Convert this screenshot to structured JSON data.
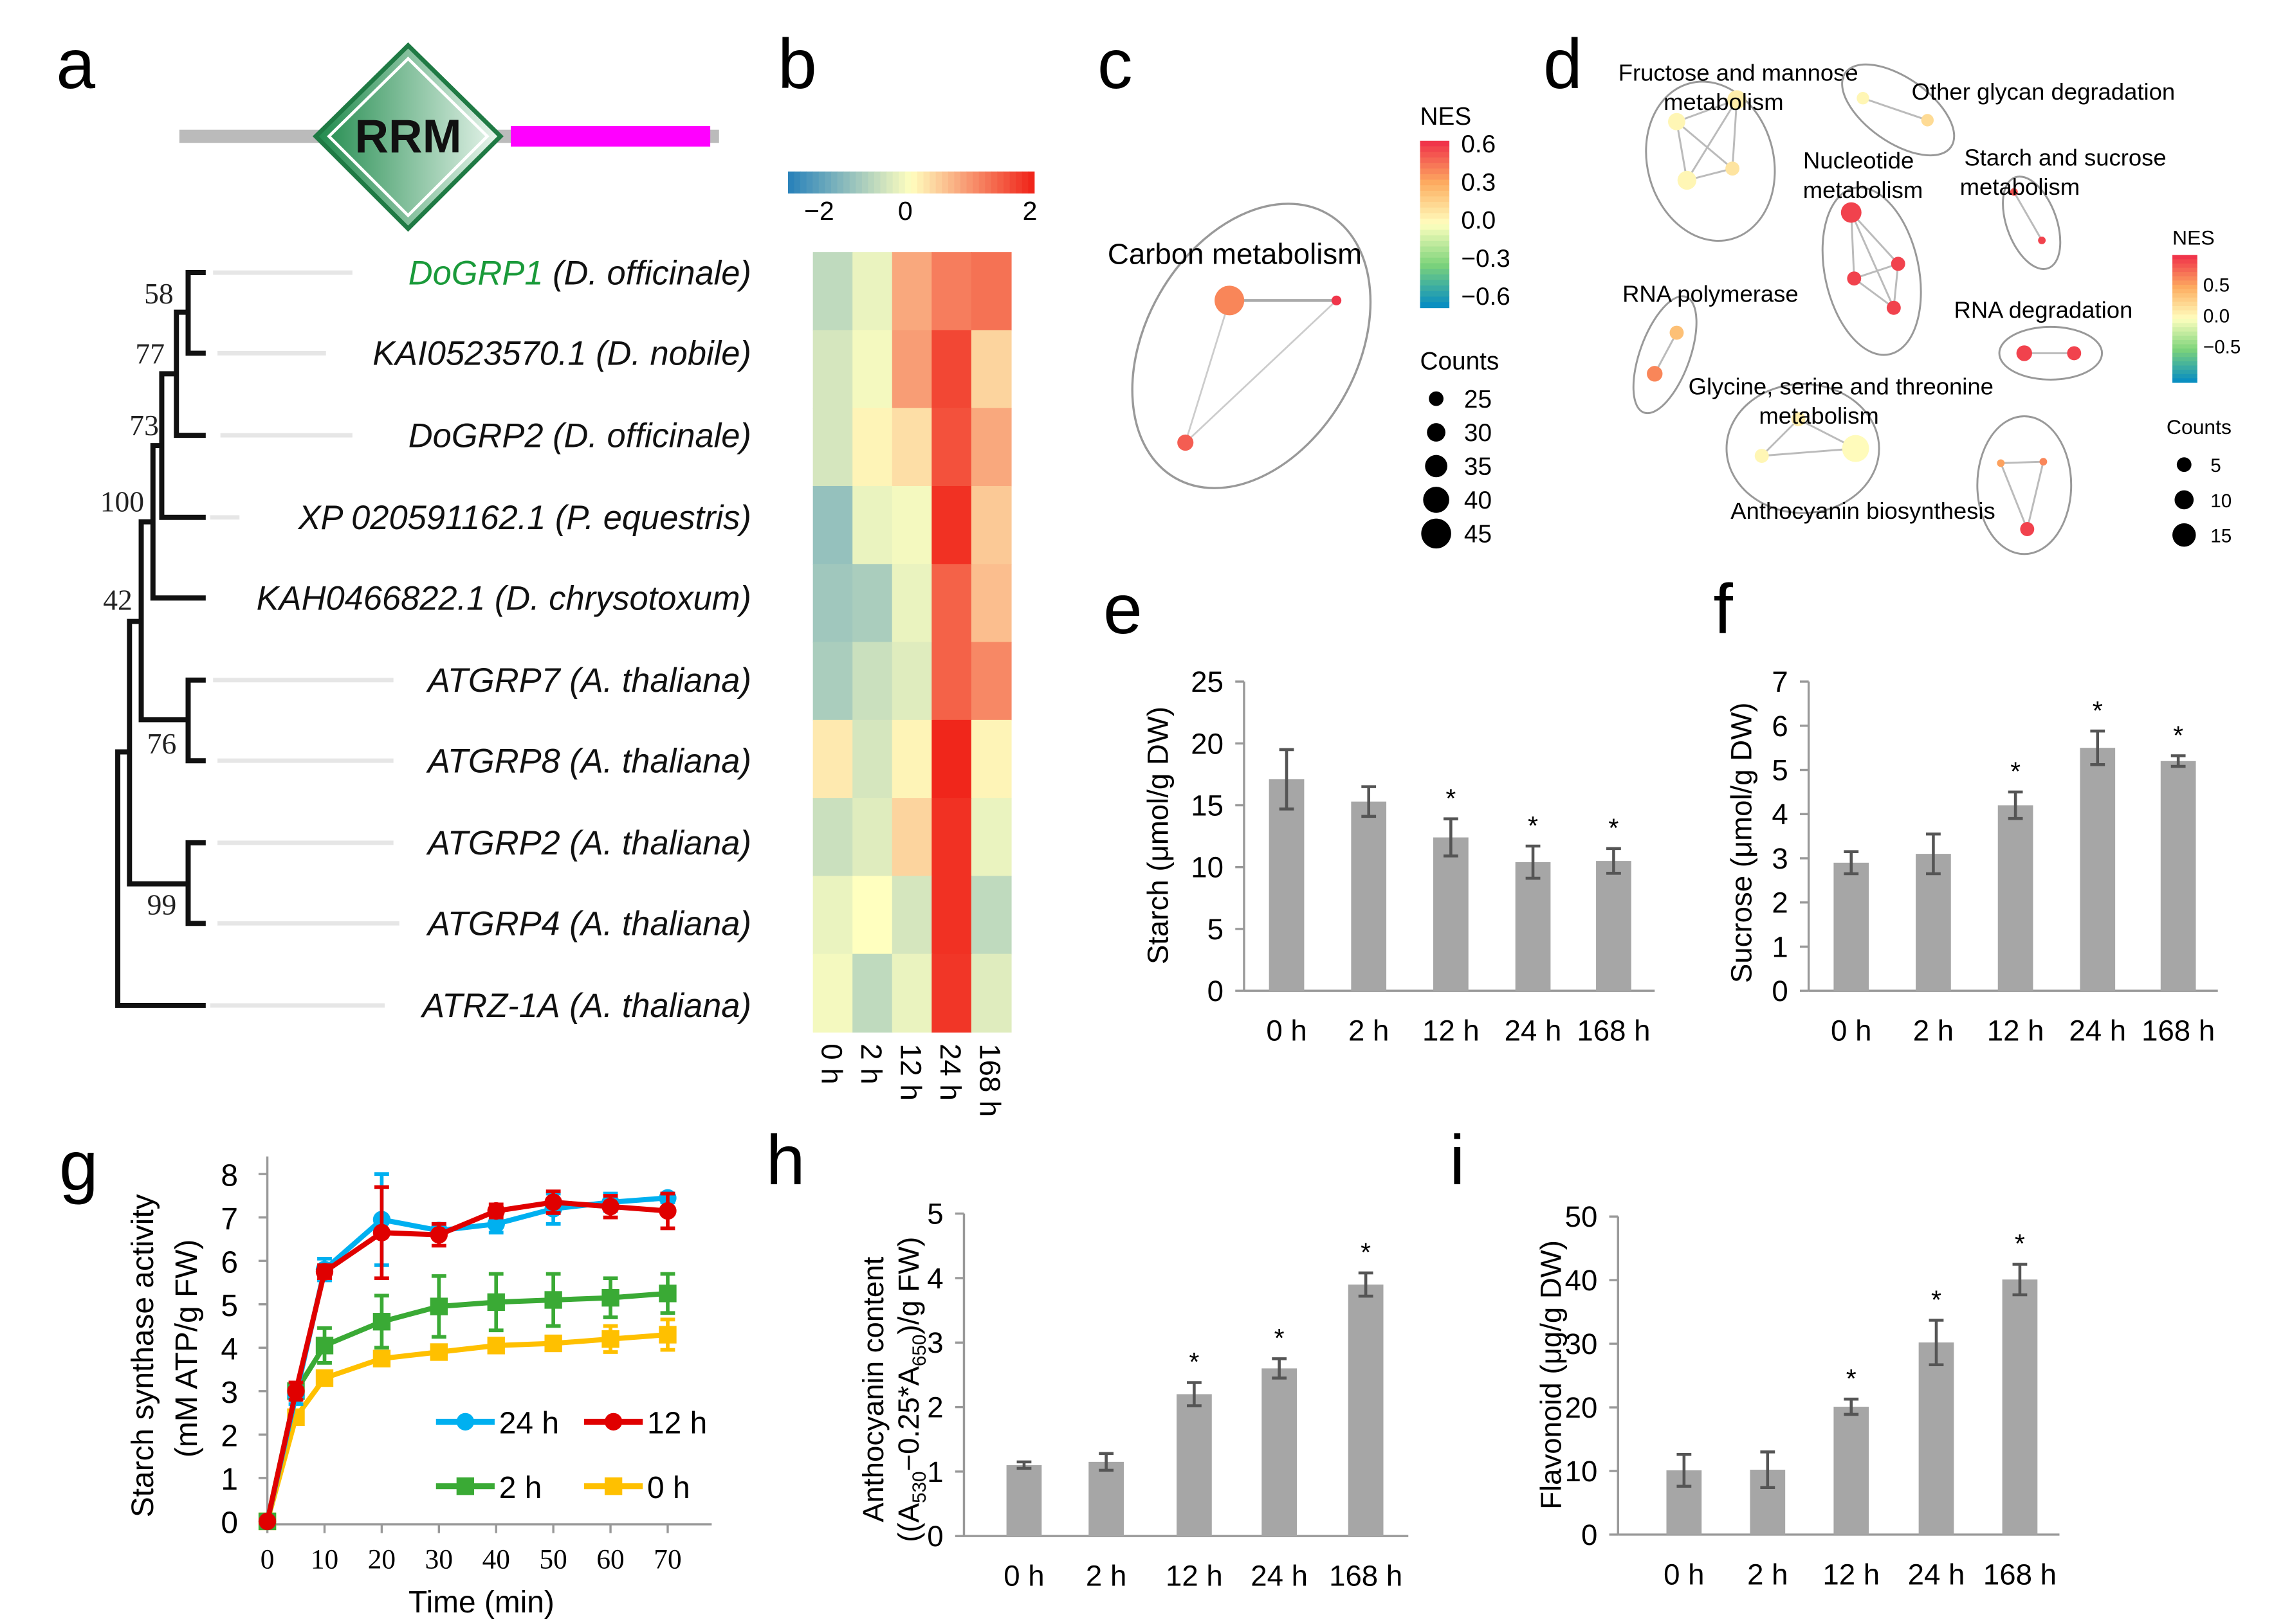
{
  "panel_labels": [
    "a",
    "b",
    "c",
    "d",
    "e",
    "f",
    "g",
    "h",
    "i"
  ],
  "domain_diagram": {
    "domain_label": "RRM",
    "colors": {
      "domain": "#2e9e5e",
      "tail": "#ff00ff",
      "line": "#bbbbbb"
    }
  },
  "tree": {
    "leaves": [
      {
        "gene": "DoGRP1",
        "species": " (D. officinale)",
        "color": "#1a9a3a"
      },
      {
        "gene": "KAI0523570.1",
        "species": " (D. nobile)",
        "color": "#111111"
      },
      {
        "gene": "DoGRP2",
        "species": " (D. officinale)",
        "color": "#111111"
      },
      {
        "gene": "XP 020591162.1",
        "species": " (P. equestris)",
        "color": "#111111"
      },
      {
        "gene": "KAH0466822.1",
        "species": " (D. chrysotoxum)",
        "color": "#111111"
      },
      {
        "gene": "ATGRP7",
        "species": " (A. thaliana)",
        "color": "#111111"
      },
      {
        "gene": "ATGRP8",
        "species": " (A. thaliana)",
        "color": "#111111"
      },
      {
        "gene": "ATGRP2",
        "species": " (A. thaliana)",
        "color": "#111111"
      },
      {
        "gene": "ATGRP4",
        "species": " (A. thaliana)",
        "color": "#111111"
      },
      {
        "gene": "ATRZ-1A",
        "species": " (A. thaliana)",
        "color": "#111111"
      }
    ],
    "bootstrap": [
      "58",
      "77",
      "73",
      "100",
      "42",
      "76",
      "99"
    ]
  },
  "chart_data": [
    {
      "id": "b",
      "type": "heatmap",
      "columns": [
        "0 h",
        "2 h",
        "12 h",
        "24 h",
        "168 h"
      ],
      "rows": [
        "DoGRP1",
        "KAI0523570.1",
        "DoGRP2",
        "XP 020591162.1",
        "KAH0466822.1",
        "ATGRP7",
        "ATGRP8",
        "ATGRP2",
        "ATGRP4",
        "ATRZ-1A"
      ],
      "values": [
        [
          -0.6,
          -0.2,
          0.8,
          1.2,
          1.3
        ],
        [
          -0.4,
          -0.1,
          0.9,
          1.7,
          0.4
        ],
        [
          -0.4,
          0.1,
          0.3,
          1.6,
          0.8
        ],
        [
          -1.0,
          -0.2,
          -0.1,
          1.9,
          0.5
        ],
        [
          -0.9,
          -0.8,
          -0.2,
          1.45,
          0.6
        ],
        [
          -0.8,
          -0.5,
          -0.3,
          1.45,
          1.1
        ],
        [
          0.2,
          -0.4,
          0.1,
          2.0,
          0.1
        ],
        [
          -0.5,
          -0.3,
          0.4,
          1.9,
          -0.2
        ],
        [
          -0.2,
          0.0,
          -0.4,
          1.9,
          -0.6
        ],
        [
          -0.1,
          -0.6,
          -0.2,
          1.85,
          -0.3
        ]
      ],
      "scale": {
        "min": -2,
        "max": 2,
        "ticks": [
          "−2",
          "0",
          "2"
        ],
        "colors": [
          "#2b83ba",
          "#ffffbf",
          "#f0261b"
        ]
      }
    },
    {
      "id": "c",
      "type": "network",
      "title": "Carbon metabolism",
      "nes_legend": {
        "title": "NES",
        "ticks": [
          "0.6",
          "0.3",
          "0.0",
          "−0.3",
          "−0.6"
        ],
        "min": -0.6,
        "max": 0.6
      },
      "counts_legend": {
        "title": "Counts",
        "values": [
          25,
          30,
          35,
          40,
          45
        ]
      },
      "groups": [
        {
          "label": "Carbon metabolism",
          "nodes": [
            {
              "nes": 0.4,
              "count": 45
            },
            {
              "nes": 0.6,
              "count": 20
            },
            {
              "nes": 0.5,
              "count": 28
            }
          ],
          "edges": [
            [
              0,
              1
            ],
            [
              0,
              2
            ],
            [
              1,
              2
            ]
          ]
        }
      ]
    },
    {
      "id": "d",
      "type": "network",
      "nes_legend": {
        "title": "NES",
        "ticks": [
          "0.5",
          "0.0",
          "−0.5"
        ],
        "min": -0.9,
        "max": 0.9
      },
      "counts_legend": {
        "title": "Counts",
        "values": [
          5,
          10,
          15
        ]
      },
      "groups": [
        {
          "label": "Fructose and mannose metabolism",
          "nodes": [
            {
              "nes": 0.05,
              "count": 8
            },
            {
              "nes": 0.1,
              "count": 9
            },
            {
              "nes": 0.15,
              "count": 6
            },
            {
              "nes": 0.05,
              "count": 9
            }
          ],
          "edges": [
            [
              0,
              1
            ],
            [
              0,
              2
            ],
            [
              0,
              3
            ],
            [
              1,
              2
            ],
            [
              1,
              3
            ],
            [
              2,
              3
            ]
          ]
        },
        {
          "label": "Other glycan degradation",
          "nodes": [
            {
              "nes": 0.05,
              "count": 5
            },
            {
              "nes": 0.2,
              "count": 5
            }
          ],
          "edges": [
            [
              0,
              1
            ]
          ]
        },
        {
          "label": "Nucleotide metabolism",
          "nodes": [
            {
              "nes": 0.85,
              "count": 10
            },
            {
              "nes": 0.85,
              "count": 6
            },
            {
              "nes": 0.85,
              "count": 6
            },
            {
              "nes": 0.85,
              "count": 6
            }
          ],
          "edges": [
            [
              0,
              1
            ],
            [
              0,
              2
            ],
            [
              0,
              3
            ],
            [
              1,
              2
            ],
            [
              1,
              3
            ],
            [
              2,
              3
            ]
          ]
        },
        {
          "label": "Starch and sucrose metabolism",
          "nodes": [
            {
              "nes": 0.8,
              "count": 2
            },
            {
              "nes": 0.85,
              "count": 2
            }
          ],
          "edges": [
            [
              0,
              1
            ]
          ]
        },
        {
          "label": "RNA polymerase",
          "nodes": [
            {
              "nes": 0.35,
              "count": 6
            },
            {
              "nes": 0.6,
              "count": 7
            }
          ],
          "edges": [
            [
              0,
              1
            ]
          ]
        },
        {
          "label": "RNA degradation",
          "nodes": [
            {
              "nes": 0.85,
              "count": 7
            },
            {
              "nes": 0.85,
              "count": 6
            }
          ],
          "edges": [
            [
              0,
              1
            ]
          ]
        },
        {
          "label": "Glycine, serine and threonine metabolism",
          "nodes": [
            {
              "nes": 0.1,
              "count": 6
            },
            {
              "nes": 0.05,
              "count": 6
            },
            {
              "nes": 0.02,
              "count": 14
            }
          ],
          "edges": [
            [
              0,
              1
            ],
            [
              0,
              2
            ],
            [
              1,
              2
            ]
          ]
        },
        {
          "label": "Anthocyanin biosynthesis",
          "nodes": [
            {
              "nes": 0.5,
              "count": 2
            },
            {
              "nes": 0.6,
              "count": 2
            },
            {
              "nes": 0.85,
              "count": 6
            }
          ],
          "edges": [
            [
              0,
              1
            ],
            [
              0,
              2
            ],
            [
              1,
              2
            ]
          ]
        }
      ]
    },
    {
      "id": "e",
      "type": "bar",
      "ylabel": "Starch (μmol/g DW)",
      "ylim": [
        0,
        25
      ],
      "yticks": [
        0,
        5,
        10,
        15,
        20,
        25
      ],
      "categories": [
        "0 h",
        "2 h",
        "12 h",
        "24 h",
        "168 h"
      ],
      "values": [
        17.1,
        15.3,
        12.4,
        10.4,
        10.5
      ],
      "errors": [
        2.4,
        1.2,
        1.5,
        1.3,
        1.0
      ],
      "significant": [
        false,
        false,
        true,
        true,
        true
      ],
      "sig_mark": "*"
    },
    {
      "id": "f",
      "type": "bar",
      "ylabel": "Sucrose (μmol/g DW)",
      "ylim": [
        0,
        7
      ],
      "yticks": [
        0,
        1,
        2,
        3,
        4,
        5,
        6,
        7
      ],
      "categories": [
        "0 h",
        "2 h",
        "12 h",
        "24 h",
        "168 h"
      ],
      "values": [
        2.9,
        3.1,
        4.2,
        5.5,
        5.2
      ],
      "errors": [
        0.25,
        0.45,
        0.3,
        0.38,
        0.12
      ],
      "significant": [
        false,
        false,
        true,
        true,
        true
      ],
      "sig_mark": "*"
    },
    {
      "id": "g",
      "type": "line",
      "xlabel": "Time (min)",
      "ylabel": "Starch  synthase activity",
      "ylabel2": "(mM ATP/g FW)",
      "xlim": [
        0,
        70
      ],
      "ylim": [
        0,
        8
      ],
      "xticks": [
        0,
        10,
        20,
        30,
        40,
        50,
        60,
        70
      ],
      "yticks": [
        0,
        1,
        2,
        3,
        4,
        5,
        6,
        7,
        8
      ],
      "x": [
        0,
        5,
        10,
        20,
        30,
        40,
        50,
        60,
        70
      ],
      "series": [
        {
          "name": "24 h",
          "color": "#00b0f0",
          "marker": "circle",
          "values": [
            0,
            2.9,
            5.8,
            6.95,
            6.7,
            6.85,
            7.2,
            7.35,
            7.45
          ],
          "errors": [
            0,
            0.2,
            0.25,
            1.05,
            0.15,
            0.2,
            0.35,
            0.2,
            0.1
          ]
        },
        {
          "name": "12 h",
          "color": "#e00000",
          "marker": "circle",
          "values": [
            0,
            3.0,
            5.75,
            6.65,
            6.6,
            7.15,
            7.35,
            7.25,
            7.15
          ],
          "errors": [
            0,
            0.2,
            0.15,
            1.05,
            0.25,
            0.15,
            0.25,
            0.25,
            0.4
          ]
        },
        {
          "name": "2 h",
          "color": "#3aaa35",
          "marker": "square",
          "values": [
            0,
            3.0,
            4.05,
            4.6,
            4.95,
            5.05,
            5.1,
            5.15,
            5.25
          ],
          "errors": [
            0,
            0.15,
            0.4,
            0.6,
            0.7,
            0.65,
            0.6,
            0.45,
            0.45
          ]
        },
        {
          "name": "0 h",
          "color": "#ffc000",
          "marker": "square",
          "values": [
            0,
            2.4,
            3.3,
            3.75,
            3.9,
            4.05,
            4.1,
            4.2,
            4.3
          ],
          "errors": [
            0,
            0.1,
            0.1,
            0.1,
            0.1,
            0.1,
            0.12,
            0.3,
            0.35
          ]
        }
      ],
      "legend": "lower-right"
    },
    {
      "id": "h",
      "type": "bar",
      "ylabel": "Anthocyanin content",
      "ylabel2_parts": [
        "((A",
        "530",
        "−0.25*A",
        "650",
        ")/g FW)"
      ],
      "ylim": [
        0,
        5
      ],
      "yticks": [
        0,
        1,
        2,
        3,
        4,
        5
      ],
      "categories": [
        "0 h",
        "2 h",
        "12 h",
        "24 h",
        "168 h"
      ],
      "values": [
        1.1,
        1.15,
        2.2,
        2.6,
        3.9
      ],
      "errors": [
        0.05,
        0.13,
        0.18,
        0.15,
        0.18
      ],
      "significant": [
        false,
        false,
        true,
        true,
        true
      ],
      "sig_mark": "*"
    },
    {
      "id": "i",
      "type": "bar",
      "ylabel": "Flavonoid (μg/g DW)",
      "ylim": [
        0,
        50
      ],
      "yticks": [
        0,
        10,
        20,
        30,
        40,
        50
      ],
      "categories": [
        "0 h",
        "2 h",
        "12 h",
        "24 h",
        "168 h"
      ],
      "values": [
        10.1,
        10.2,
        20.1,
        30.2,
        40.1
      ],
      "errors": [
        2.5,
        2.8,
        1.2,
        3.5,
        2.4
      ],
      "significant": [
        false,
        false,
        true,
        true,
        true
      ],
      "sig_mark": "*"
    }
  ]
}
